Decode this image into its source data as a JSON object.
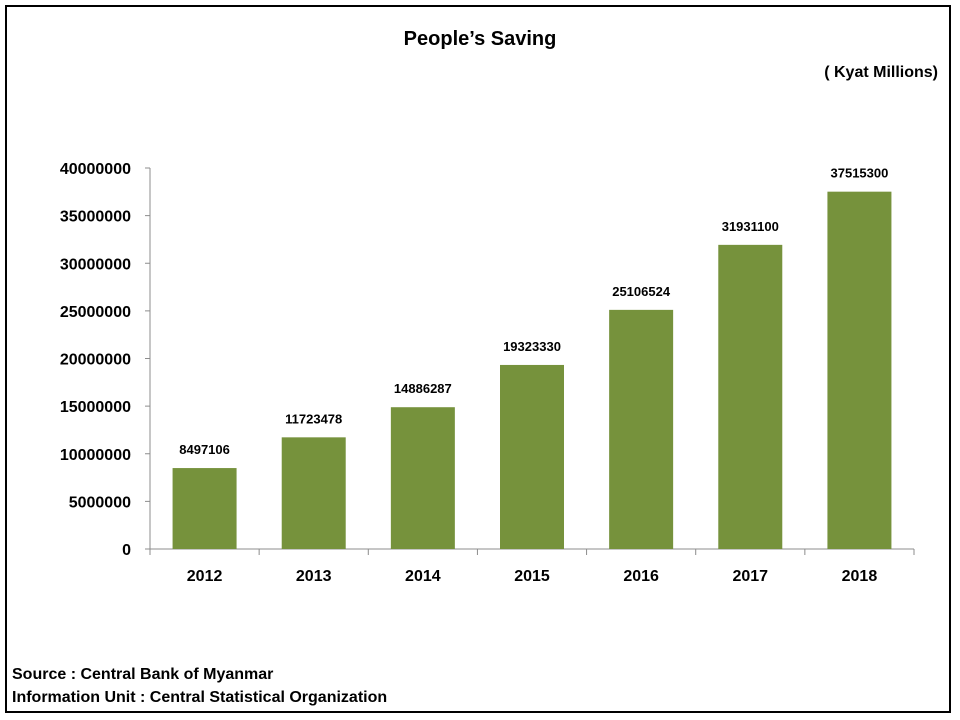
{
  "page": {
    "title": "People’s Saving",
    "unit": "( Kyat  Millions)",
    "source_line1": "Source : Central Bank of Myanmar",
    "source_line2": "Information Unit : Central Statistical Organization"
  },
  "chart_data": {
    "type": "bar",
    "title": "People’s Saving",
    "unit": "( Kyat  Millions)",
    "categories": [
      "2012",
      "2013",
      "2014",
      "2015",
      "2016",
      "2017",
      "2018"
    ],
    "values": [
      8497106,
      11723478,
      14886287,
      19323330,
      25106524,
      31931100,
      37515300
    ],
    "ylim": [
      0,
      40000000
    ],
    "yticks": [
      0,
      5000000,
      10000000,
      15000000,
      20000000,
      25000000,
      30000000,
      35000000,
      40000000
    ],
    "bar_color": "#76923c",
    "grid": false,
    "legend": "none",
    "data_labels": true
  }
}
